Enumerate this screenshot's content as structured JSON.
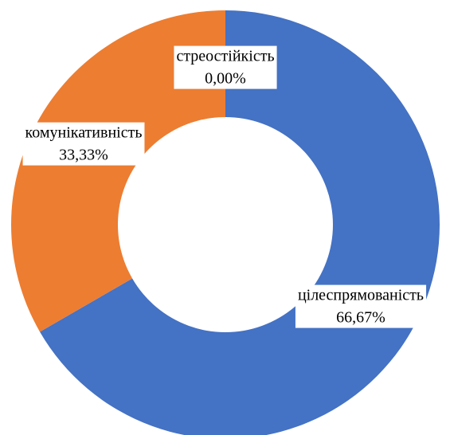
{
  "chart_data": {
    "type": "donut",
    "categories": [
      "цілеспрямованість",
      "комунікативність",
      "стреостійкість"
    ],
    "values": [
      66.67,
      33.33,
      0
    ],
    "value_labels": [
      "66,67%",
      "33,33%",
      "0,00%"
    ],
    "colors": [
      "#4472c4",
      "#ed7d31",
      "#a5a5a5"
    ]
  }
}
